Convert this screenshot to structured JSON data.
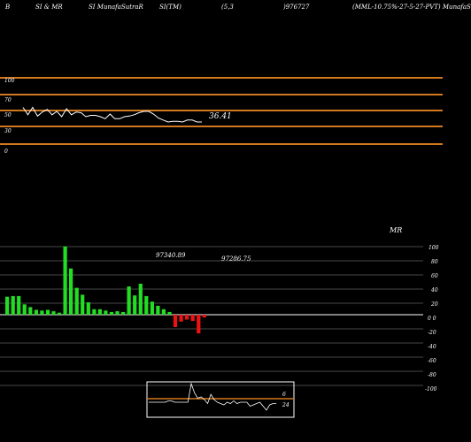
{
  "header": {
    "h1": "B",
    "h2": "SI & MR",
    "h3": "SI MunafaSutraR",
    "h4": "SI(TM)",
    "h5": "(5,3",
    "h6": ")976727",
    "h7": "(MML-10.75%-27-5-27-PVT) MunafaS"
  },
  "colors": {
    "background": "#000000",
    "orange": "#d2781e",
    "up_bar": "#22dd22",
    "down_bar": "#ee1111",
    "line": "#ffffff",
    "grid": "#cccccc"
  },
  "rsi_panel": {
    "tick_labels": [
      "100",
      "70",
      "50",
      "30",
      "0"
    ],
    "current_value_label": "36.41"
  },
  "mr_panel": {
    "title": "MR",
    "value_label_1": "97340.89",
    "value_label_2": "97286.75",
    "tick_labels": [
      "100",
      "80",
      "60",
      "40",
      "20",
      "0 0",
      "-20",
      "-40",
      "-60",
      "-80",
      "-100"
    ]
  },
  "mini_panel": {
    "label_top": "6",
    "label_bottom": "24"
  },
  "chart_data": [
    {
      "type": "line",
      "name": "SI",
      "ylim": [
        0,
        100
      ],
      "values": [
        58,
        47,
        58,
        45,
        51,
        55,
        47,
        52,
        44,
        56,
        47,
        51,
        50,
        44,
        46,
        46,
        44,
        41,
        48,
        41,
        41,
        44,
        45,
        47,
        50,
        52,
        52,
        48,
        42,
        39,
        36,
        37,
        37,
        36,
        39,
        39,
        36,
        36
      ]
    },
    {
      "type": "bar",
      "name": "MR",
      "ylim": [
        -100,
        100
      ],
      "values": [
        26,
        27,
        27,
        15,
        11,
        7,
        6,
        7,
        5,
        3,
        99,
        67,
        39,
        29,
        18,
        8,
        8,
        6,
        4,
        5,
        4,
        41,
        28,
        45,
        27,
        19,
        13,
        8,
        4,
        -18,
        -10,
        -7,
        -9,
        -27,
        -4
      ]
    },
    {
      "type": "line",
      "name": "mini",
      "values": [
        6,
        6,
        6,
        6,
        6,
        6,
        7,
        7,
        6,
        6,
        6,
        6,
        6,
        20,
        13,
        9,
        10,
        8,
        5,
        12,
        8,
        6,
        5,
        4,
        6,
        5,
        7,
        5,
        6,
        6,
        6,
        3,
        4,
        5,
        6,
        3,
        0,
        4,
        5,
        5
      ]
    }
  ]
}
